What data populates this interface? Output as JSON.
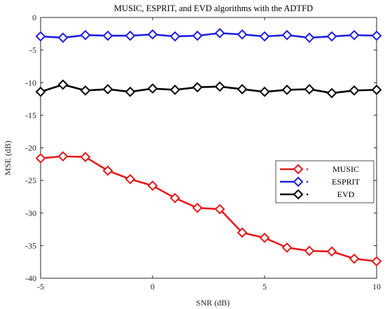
{
  "chart_data": {
    "type": "line",
    "title": "MUSIC, ESPRIT, and EVD algorithms with the ADTFD",
    "xlabel": "SNR (dB)",
    "ylabel": "MSE (dB)",
    "xlim": [
      -5,
      10
    ],
    "ylim": [
      -40,
      0
    ],
    "xticks": [
      -5,
      0,
      5,
      10
    ],
    "yticks": [
      0,
      -5,
      -10,
      -15,
      -20,
      -25,
      -30,
      -35,
      -40
    ],
    "xtick_labels": [
      "-5",
      "0",
      "5",
      "10"
    ],
    "ytick_labels": [
      "0",
      "-5",
      "-10",
      "-15",
      "-20",
      "-25",
      "-30",
      "-35",
      "-40"
    ],
    "grid": false,
    "legend_position": "right",
    "x": [
      -5,
      -4,
      -3,
      -2,
      -1,
      0,
      1,
      2,
      3,
      4,
      5,
      6,
      7,
      8,
      9,
      10
    ],
    "series": [
      {
        "name": "MUSIC",
        "color": "#e41a1c",
        "marker": "diamond",
        "values": [
          -21.6,
          -21.3,
          -21.4,
          -23.5,
          -24.8,
          -25.8,
          -27.7,
          -29.2,
          -29.4,
          -33.0,
          -33.8,
          -35.3,
          -35.8,
          -35.9,
          -37.0,
          -37.4
        ]
      },
      {
        "name": "ESPRIT",
        "color": "#1f1fe0",
        "marker": "diamond",
        "values": [
          -2.9,
          -3.1,
          -2.7,
          -2.8,
          -2.8,
          -2.6,
          -2.9,
          -2.8,
          -2.4,
          -2.6,
          -2.9,
          -2.7,
          -3.1,
          -2.9,
          -2.7,
          -2.8
        ]
      },
      {
        "name": "EVD",
        "color": "#000000",
        "marker": "diamond",
        "values": [
          -11.4,
          -10.3,
          -11.2,
          -11.0,
          -11.4,
          -10.9,
          -11.1,
          -10.7,
          -10.6,
          -11.0,
          -11.4,
          -11.1,
          -11.0,
          -11.6,
          -11.2,
          -11.1
        ]
      }
    ]
  }
}
